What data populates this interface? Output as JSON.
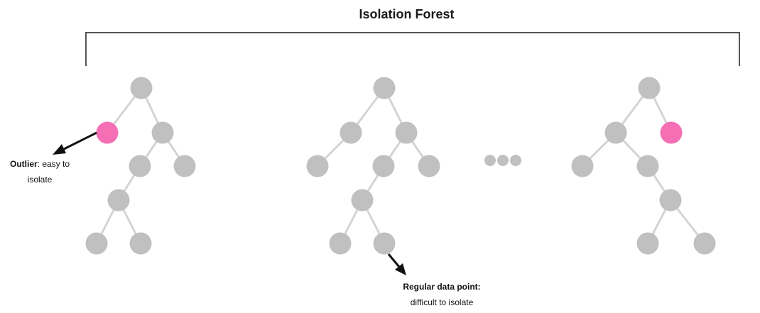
{
  "title": "Isolation Forest",
  "labels": {
    "outlier_bold": "Outlier",
    "outlier_rest": ": easy to",
    "outlier_line2": "isolate",
    "regular_line1": "Regular data point:",
    "regular_line2": "difficult to isolate"
  },
  "colors": {
    "node": "#c0c0c0",
    "outlier": "#f56fb5",
    "edge": "#d4d4d4",
    "bracket": "#555555",
    "arrow": "#111111"
  },
  "trees": [
    {
      "name": "tree-1",
      "nodes": [
        {
          "id": "r",
          "outlier": false
        },
        {
          "id": "a",
          "outlier": true
        },
        {
          "id": "b",
          "outlier": false
        },
        {
          "id": "c",
          "outlier": false
        },
        {
          "id": "d",
          "outlier": false
        },
        {
          "id": "e",
          "outlier": false
        },
        {
          "id": "f",
          "outlier": false
        },
        {
          "id": "g",
          "outlier": false
        }
      ],
      "edges": [
        [
          "r",
          "a"
        ],
        [
          "r",
          "b"
        ],
        [
          "b",
          "c"
        ],
        [
          "b",
          "d"
        ],
        [
          "c",
          "e"
        ],
        [
          "e",
          "f"
        ],
        [
          "e",
          "g"
        ]
      ]
    },
    {
      "name": "tree-2",
      "nodes": [
        {
          "id": "r",
          "outlier": false
        },
        {
          "id": "a",
          "outlier": false
        },
        {
          "id": "b",
          "outlier": false
        },
        {
          "id": "c",
          "outlier": false
        },
        {
          "id": "d",
          "outlier": false
        },
        {
          "id": "e",
          "outlier": false
        },
        {
          "id": "f",
          "outlier": false
        },
        {
          "id": "g",
          "outlier": false
        },
        {
          "id": "h",
          "outlier": false
        }
      ],
      "edges": [
        [
          "r",
          "a"
        ],
        [
          "r",
          "b"
        ],
        [
          "a",
          "c"
        ],
        [
          "b",
          "d"
        ],
        [
          "b",
          "e"
        ],
        [
          "d",
          "f"
        ],
        [
          "f",
          "g"
        ],
        [
          "f",
          "h"
        ]
      ]
    },
    {
      "name": "tree-3",
      "nodes": [
        {
          "id": "r",
          "outlier": false
        },
        {
          "id": "a",
          "outlier": false
        },
        {
          "id": "b",
          "outlier": true
        },
        {
          "id": "c",
          "outlier": false
        },
        {
          "id": "d",
          "outlier": false
        },
        {
          "id": "e",
          "outlier": false
        },
        {
          "id": "f",
          "outlier": false
        },
        {
          "id": "g",
          "outlier": false
        }
      ],
      "edges": [
        [
          "r",
          "a"
        ],
        [
          "r",
          "b"
        ],
        [
          "a",
          "c"
        ],
        [
          "a",
          "d"
        ],
        [
          "d",
          "e"
        ],
        [
          "e",
          "f"
        ],
        [
          "e",
          "g"
        ]
      ]
    }
  ],
  "ellipsis_dots": 3
}
